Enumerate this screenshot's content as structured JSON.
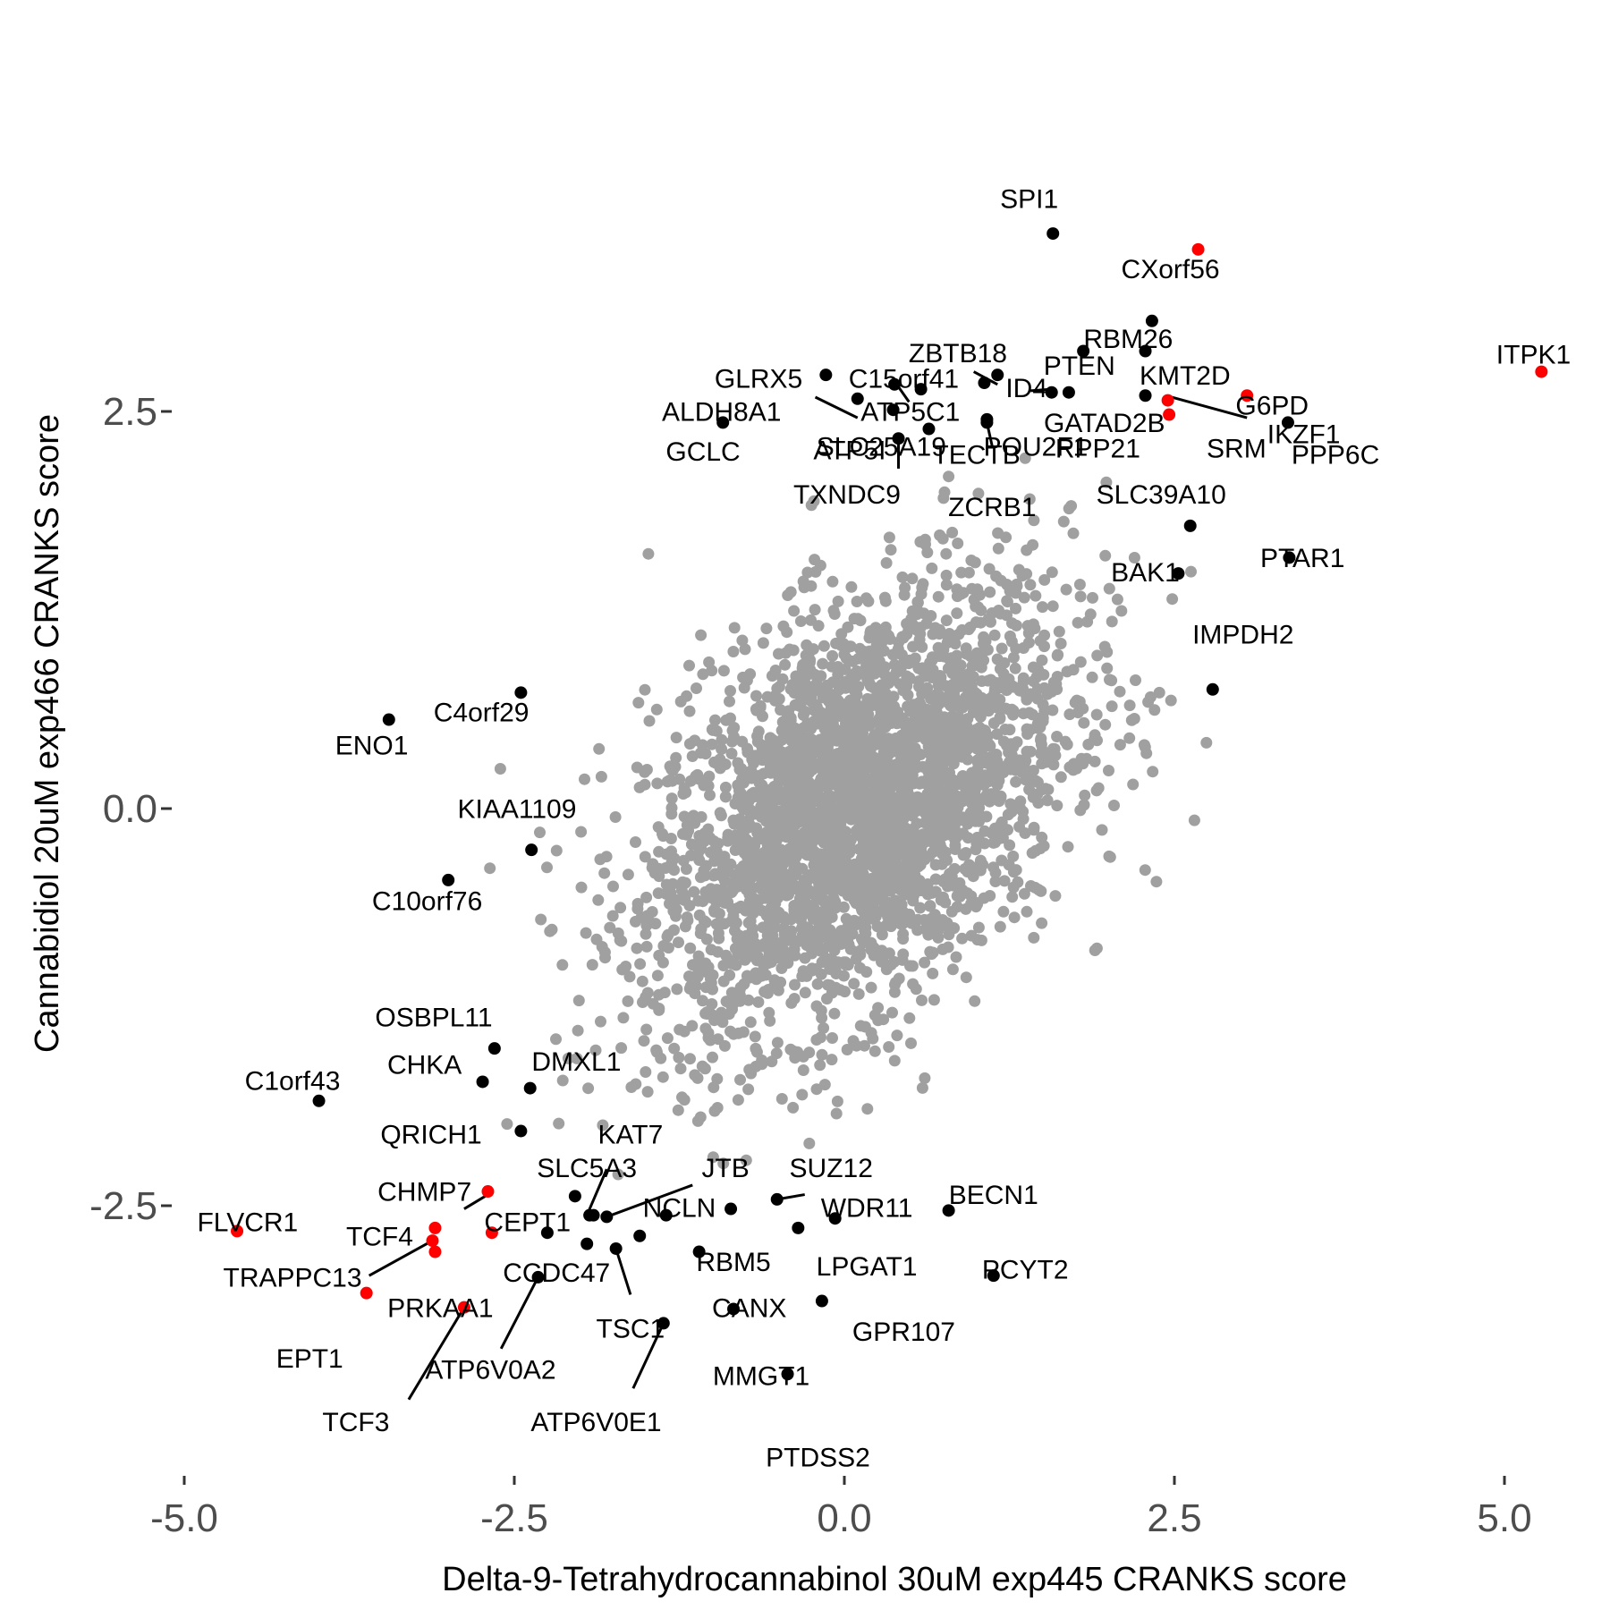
{
  "chart_data": {
    "type": "scatter",
    "title": "",
    "xlabel": "Delta-9-Tetrahydrocannabinol 30uM exp445 CRANKS score",
    "ylabel": "Cannabidiol 20uM exp466 CRANKS score",
    "xlim": [
      -5.2,
      5.6
    ],
    "ylim": [
      -3.5,
      3.8
    ],
    "x_ticks": [
      -5.0,
      -2.5,
      0.0,
      2.5,
      5.0
    ],
    "x_tick_labels": [
      "-5.0",
      "-2.5",
      "0.0",
      "2.5",
      "5.0"
    ],
    "y_ticks": [
      2.5,
      0.0,
      -2.5
    ],
    "y_tick_labels": [
      "2.5",
      "0.0",
      "-2.5"
    ],
    "grid": false,
    "colors": {
      "background_points": "#a0a0a0",
      "highlight_black": "#000000",
      "highlight_red": "#ff0000",
      "ticks": "#4d4d4d"
    },
    "background_cloud": {
      "color": "#a0a0a0",
      "count": 3200,
      "center": [
        0.1,
        0.0
      ],
      "sd": [
        0.8,
        0.7
      ],
      "correlation": 0.45
    },
    "points": [
      {
        "gene": "SPI1",
        "x": 1.58,
        "y": 3.62,
        "color": "black"
      },
      {
        "gene": "CXorf56",
        "x": 2.68,
        "y": 3.52,
        "color": "red"
      },
      {
        "gene": "RBM26",
        "x": 2.33,
        "y": 3.07,
        "color": "black"
      },
      {
        "gene": "PTEN",
        "x": 1.81,
        "y": 2.88,
        "color": "black"
      },
      {
        "gene": "KMT2D",
        "x": 2.28,
        "y": 2.88,
        "color": "black"
      },
      {
        "gene": "ZBTB18",
        "x": 1.16,
        "y": 2.73,
        "color": "black"
      },
      {
        "gene": "ID4",
        "x": 1.57,
        "y": 2.62,
        "color": "black"
      },
      {
        "gene": "GATAD2B",
        "x": 2.28,
        "y": 2.6,
        "color": "black"
      },
      {
        "gene": "G6PD",
        "x": 2.45,
        "y": 2.57,
        "color": "red"
      },
      {
        "gene": "IKZF1",
        "x": 3.05,
        "y": 2.6,
        "color": "red"
      },
      {
        "gene": "ITPK1",
        "x": 5.28,
        "y": 2.75,
        "color": "red"
      },
      {
        "gene": "SRM",
        "x": 2.46,
        "y": 2.48,
        "color": "red"
      },
      {
        "gene": "PPP6C",
        "x": 3.36,
        "y": 2.43,
        "color": "black"
      },
      {
        "gene": "RPP21",
        "x": 1.7,
        "y": 2.62,
        "color": "black"
      },
      {
        "gene": "GLRX5",
        "x": -0.14,
        "y": 2.73,
        "color": "black"
      },
      {
        "gene": "C15orf41",
        "x": 0.38,
        "y": 2.67,
        "color": "black"
      },
      {
        "gene": "ALDH8A1",
        "x": 0.1,
        "y": 2.58,
        "color": "black"
      },
      {
        "gene": "ATP5C1",
        "x": 0.58,
        "y": 2.64,
        "color": "black"
      },
      {
        "gene": "POU2F1",
        "x": 1.06,
        "y": 2.68,
        "color": "black"
      },
      {
        "gene": "SLC25A19",
        "x": 0.37,
        "y": 2.51,
        "color": "black"
      },
      {
        "gene": "GCLC",
        "x": -0.92,
        "y": 2.43,
        "color": "black"
      },
      {
        "gene": "ATP5I",
        "x": 0.64,
        "y": 2.39,
        "color": "black"
      },
      {
        "gene": "TECTB",
        "x": 1.08,
        "y": 2.45,
        "color": "black"
      },
      {
        "gene": "TXNDC9",
        "x": 0.41,
        "y": 2.33,
        "color": "black"
      },
      {
        "gene": "ZCRB1",
        "x": 1.08,
        "y": 2.43,
        "color": "black"
      },
      {
        "gene": "SLC39A10",
        "x": 2.62,
        "y": 1.78,
        "color": "black"
      },
      {
        "gene": "PTAR1",
        "x": 3.37,
        "y": 1.58,
        "color": "black"
      },
      {
        "gene": "BAK1",
        "x": 2.53,
        "y": 1.48,
        "color": "black"
      },
      {
        "gene": "IMPDH2",
        "x": 2.79,
        "y": 0.75,
        "color": "black"
      },
      {
        "gene": "C4orf29",
        "x": -2.45,
        "y": 0.73,
        "color": "black"
      },
      {
        "gene": "ENO1",
        "x": -3.45,
        "y": 0.56,
        "color": "black"
      },
      {
        "gene": "KIAA1109",
        "x": -2.37,
        "y": -0.26,
        "color": "black"
      },
      {
        "gene": "C10orf76",
        "x": -3.0,
        "y": -0.45,
        "color": "black"
      },
      {
        "gene": "OSBPL11",
        "x": -2.65,
        "y": -1.51,
        "color": "black"
      },
      {
        "gene": "DMXL1",
        "x": -2.38,
        "y": -1.76,
        "color": "black"
      },
      {
        "gene": "CHKA",
        "x": -2.74,
        "y": -1.72,
        "color": "black"
      },
      {
        "gene": "C1orf43",
        "x": -3.98,
        "y": -1.84,
        "color": "black"
      },
      {
        "gene": "QRICH1",
        "x": -2.45,
        "y": -2.03,
        "color": "black"
      },
      {
        "gene": "SLC5A3",
        "x": -2.04,
        "y": -2.44,
        "color": "black"
      },
      {
        "gene": "KAT7",
        "x": -1.93,
        "y": -2.56,
        "color": "black"
      },
      {
        "gene": "CHMP7",
        "x": -2.7,
        "y": -2.41,
        "color": "red"
      },
      {
        "gene": "CEPT1",
        "x": -2.67,
        "y": -2.67,
        "color": "red"
      },
      {
        "gene": "JTB",
        "x": -1.8,
        "y": -2.57,
        "color": "black"
      },
      {
        "gene": "SUZ12",
        "x": -0.51,
        "y": -2.46,
        "color": "black"
      },
      {
        "gene": "NCLN",
        "x": -1.35,
        "y": -2.56,
        "color": "black"
      },
      {
        "gene": "WDR11",
        "x": -0.07,
        "y": -2.58,
        "color": "black"
      },
      {
        "gene": "BECN1",
        "x": 0.79,
        "y": -2.53,
        "color": "black"
      },
      {
        "gene": "FLVCR1",
        "x": -4.6,
        "y": -2.66,
        "color": "red"
      },
      {
        "gene": "TCF4",
        "x": -3.1,
        "y": -2.64,
        "color": "red"
      },
      {
        "gene": "TRAPPC13",
        "x": -3.12,
        "y": -2.72,
        "color": "red"
      },
      {
        "gene": "EPT1",
        "x": -3.1,
        "y": -2.79,
        "color": "red"
      },
      {
        "gene": "CCDC47",
        "x": -2.25,
        "y": -2.67,
        "color": "black"
      },
      {
        "gene": "RBM5",
        "x": -0.86,
        "y": -2.52,
        "color": "black"
      },
      {
        "gene": "LPGAT1",
        "x": -0.35,
        "y": -2.64,
        "color": "black"
      },
      {
        "gene": "TSC1",
        "x": -1.73,
        "y": -2.77,
        "color": "black"
      },
      {
        "gene": "CANX",
        "x": -1.1,
        "y": -2.79,
        "color": "black"
      },
      {
        "gene": "PRKAA1",
        "x": -3.62,
        "y": -3.05,
        "color": "red"
      },
      {
        "gene": "TCF3",
        "x": -2.88,
        "y": -3.14,
        "color": "red"
      },
      {
        "gene": "ATP6V0A2",
        "x": -2.32,
        "y": -2.95,
        "color": "black"
      },
      {
        "gene": "PCYT2",
        "x": 1.13,
        "y": -2.94,
        "color": "black"
      },
      {
        "gene": "GPR107",
        "x": -0.17,
        "y": -3.1,
        "color": "black"
      },
      {
        "gene": "MMGT1",
        "x": -0.84,
        "y": -3.15,
        "color": "black"
      },
      {
        "gene": "ATP6V0E1",
        "x": -1.37,
        "y": -3.24,
        "color": "black"
      },
      {
        "gene": "PTDSS2",
        "x": -0.43,
        "y": -3.56,
        "color": "black"
      },
      {
        "gene": "_b1",
        "x": -1.55,
        "y": -2.69,
        "color": "black"
      },
      {
        "gene": "_b2",
        "x": -1.95,
        "y": -2.74,
        "color": "black"
      },
      {
        "gene": "_b3",
        "x": -1.9,
        "y": -2.56,
        "color": "black"
      }
    ],
    "labels": [
      {
        "text": "SPI1",
        "x": 1.4,
        "y": 3.78
      },
      {
        "text": "CXorf56",
        "x": 2.47,
        "y": 3.34
      },
      {
        "text": "RBM26",
        "x": 2.15,
        "y": 2.9
      },
      {
        "text": "ZBTB18",
        "x": 0.86,
        "y": 2.81
      },
      {
        "text": "PTEN",
        "x": 1.78,
        "y": 2.73
      },
      {
        "text": "KMT2D",
        "x": 2.58,
        "y": 2.67
      },
      {
        "text": "GLRX5",
        "x": -0.65,
        "y": 2.65
      },
      {
        "text": "C15orf41",
        "x": 0.45,
        "y": 2.65
      },
      {
        "text": "ID4",
        "x": 1.38,
        "y": 2.59
      },
      {
        "text": "ITPK1",
        "x": 5.22,
        "y": 2.8
      },
      {
        "text": "ALDH8A1",
        "x": -0.93,
        "y": 2.44
      },
      {
        "text": "ATP5C1",
        "x": 0.5,
        "y": 2.44
      },
      {
        "text": "GATAD2B",
        "x": 1.97,
        "y": 2.37
      },
      {
        "text": "G6PD",
        "x": 3.24,
        "y": 2.48
      },
      {
        "text": "IKZF1",
        "x": 3.48,
        "y": 2.3
      },
      {
        "text": "SLC25A19",
        "x": 0.28,
        "y": 2.22
      },
      {
        "text": "POU2F1",
        "x": 1.45,
        "y": 2.22
      },
      {
        "text": "RPP21",
        "x": 1.92,
        "y": 2.21
      },
      {
        "text": "SRM",
        "x": 2.97,
        "y": 2.21
      },
      {
        "text": "PPP6C",
        "x": 3.72,
        "y": 2.17
      },
      {
        "text": "GCLC",
        "x": -1.07,
        "y": 2.19
      },
      {
        "text": "ATP5I",
        "x": 0.04,
        "y": 2.2
      },
      {
        "text": "TECTB",
        "x": 1.0,
        "y": 2.17
      },
      {
        "text": "SLC39A10",
        "x": 2.4,
        "y": 1.92
      },
      {
        "text": "TXNDC9",
        "x": 0.02,
        "y": 1.92
      },
      {
        "text": "ZCRB1",
        "x": 1.12,
        "y": 1.84
      },
      {
        "text": "PTAR1",
        "x": 3.47,
        "y": 1.52
      },
      {
        "text": "BAK1",
        "x": 2.28,
        "y": 1.43
      },
      {
        "text": "IMPDH2",
        "x": 3.02,
        "y": 1.04
      },
      {
        "text": "C4orf29",
        "x": -2.75,
        "y": 0.55
      },
      {
        "text": "ENO1",
        "x": -3.58,
        "y": 0.34
      },
      {
        "text": "KIAA1109",
        "x": -2.48,
        "y": -0.06
      },
      {
        "text": "C10orf76",
        "x": -3.16,
        "y": -0.64
      },
      {
        "text": "OSBPL11",
        "x": -3.11,
        "y": -1.37
      },
      {
        "text": "DMXL1",
        "x": -2.03,
        "y": -1.65
      },
      {
        "text": "CHKA",
        "x": -3.18,
        "y": -1.67
      },
      {
        "text": "C1orf43",
        "x": -4.18,
        "y": -1.77
      },
      {
        "text": "QRICH1",
        "x": -3.13,
        "y": -2.11
      },
      {
        "text": "KAT7",
        "x": -1.62,
        "y": -2.11
      },
      {
        "text": "SLC5A3",
        "x": -1.95,
        "y": -2.32
      },
      {
        "text": "JTB",
        "x": -0.9,
        "y": -2.32
      },
      {
        "text": "SUZ12",
        "x": -0.1,
        "y": -2.32
      },
      {
        "text": "CHMP7",
        "x": -3.18,
        "y": -2.47
      },
      {
        "text": "BECN1",
        "x": 1.13,
        "y": -2.49
      },
      {
        "text": "NCLN",
        "x": -1.25,
        "y": -2.57
      },
      {
        "text": "WDR11",
        "x": 0.17,
        "y": -2.57
      },
      {
        "text": "FLVCR1",
        "x": -4.52,
        "y": -2.66
      },
      {
        "text": "CEPT1",
        "x": -2.4,
        "y": -2.66
      },
      {
        "text": "TCF4",
        "x": -3.52,
        "y": -2.75
      },
      {
        "text": "RBM5",
        "x": -0.84,
        "y": -2.91
      },
      {
        "text": "LPGAT1",
        "x": 0.17,
        "y": -2.94
      },
      {
        "text": "TRAPPC13",
        "x": -4.18,
        "y": -3.01
      },
      {
        "text": "CCDC47",
        "x": -2.18,
        "y": -2.98
      },
      {
        "text": "PCYT2",
        "x": 1.37,
        "y": -2.96
      },
      {
        "text": "PRKAA1",
        "x": -3.06,
        "y": -3.2
      },
      {
        "text": "CANX",
        "x": -0.72,
        "y": -3.2
      },
      {
        "text": "TSC1",
        "x": -1.62,
        "y": -3.33
      },
      {
        "text": "GPR107",
        "x": 0.45,
        "y": -3.35
      },
      {
        "text": "EPT1",
        "x": -4.05,
        "y": -3.52
      },
      {
        "text": "ATP6V0A2",
        "x": -2.68,
        "y": -3.59
      },
      {
        "text": "MMGT1",
        "x": -0.63,
        "y": -3.63
      },
      {
        "text": "TCF3",
        "x": -3.7,
        "y": -3.92
      },
      {
        "text": "ATP6V0E1",
        "x": -1.88,
        "y": -3.92
      },
      {
        "text": "PTDSS2",
        "x": -0.2,
        "y": -4.14
      }
    ],
    "connectors": [
      {
        "x1": -0.22,
        "y1": 2.59,
        "x2": 0.1,
        "y2": 2.46
      },
      {
        "x1": 0.49,
        "y1": 2.56,
        "x2": 0.38,
        "y2": 2.69
      },
      {
        "x1": 0.98,
        "y1": 2.75,
        "x2": 1.16,
        "y2": 2.67
      },
      {
        "x1": 1.41,
        "y1": 2.63,
        "x2": 1.57,
        "y2": 2.64
      },
      {
        "x1": 2.48,
        "y1": 2.59,
        "x2": 3.05,
        "y2": 2.46
      },
      {
        "x1": 1.08,
        "y1": 2.43,
        "x2": 1.12,
        "y2": 2.28
      },
      {
        "x1": 0.41,
        "y1": 2.33,
        "x2": 0.41,
        "y2": 2.14
      },
      {
        "x1": -2.88,
        "y1": -2.52,
        "x2": -2.7,
        "y2": -2.43
      },
      {
        "x1": -1.95,
        "y1": -2.56,
        "x2": -1.8,
        "y2": -2.27
      },
      {
        "x1": -1.8,
        "y1": -2.57,
        "x2": -1.15,
        "y2": -2.37
      },
      {
        "x1": -0.51,
        "y1": -2.46,
        "x2": -0.3,
        "y2": -2.43
      },
      {
        "x1": -3.6,
        "y1": -2.94,
        "x2": -3.12,
        "y2": -2.72
      },
      {
        "x1": -1.73,
        "y1": -2.77,
        "x2": -1.62,
        "y2": -3.06
      },
      {
        "x1": -2.32,
        "y1": -2.95,
        "x2": -2.6,
        "y2": -3.4
      },
      {
        "x1": -3.3,
        "y1": -3.72,
        "x2": -2.88,
        "y2": -3.14
      },
      {
        "x1": -1.37,
        "y1": -3.24,
        "x2": -1.6,
        "y2": -3.65
      }
    ]
  }
}
